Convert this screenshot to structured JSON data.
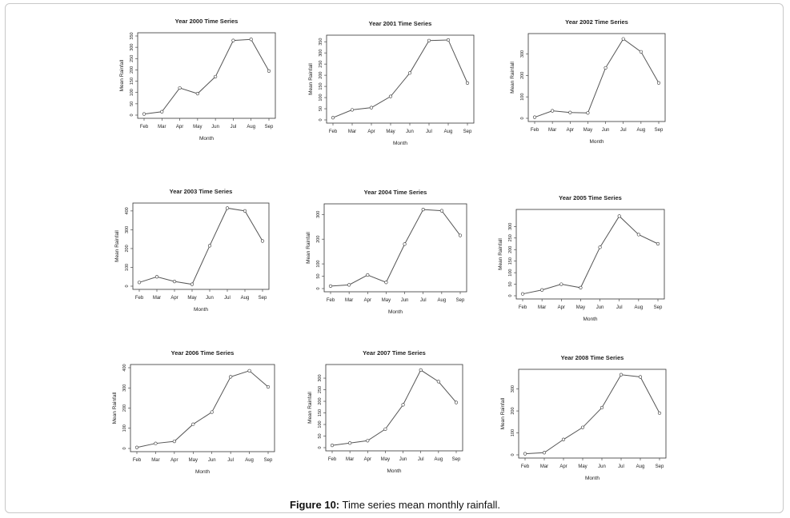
{
  "figure": {
    "label": "Figure 10:",
    "caption": "Time series mean monthly rainfall."
  },
  "chart_data": [
    {
      "type": "line",
      "title": "Year 2000 Time Series",
      "xlabel": "Month",
      "ylabel": "Mean Rainfall",
      "categories": [
        "Feb",
        "Mar",
        "Apr",
        "May",
        "Jun",
        "Jul",
        "Aug",
        "Sep"
      ],
      "values": [
        5,
        15,
        120,
        95,
        170,
        330,
        335,
        195
      ],
      "ylim": [
        0,
        350
      ],
      "yticks": [
        0,
        50,
        100,
        150,
        200,
        250,
        300,
        350
      ]
    },
    {
      "type": "line",
      "title": "Year 2001 Time Series",
      "xlabel": "Month",
      "ylabel": "Mean Rainfall",
      "categories": [
        "Feb",
        "Mar",
        "Apr",
        "May",
        "Jun",
        "Jul",
        "Aug",
        "Sep"
      ],
      "values": [
        10,
        45,
        55,
        105,
        210,
        355,
        358,
        165
      ],
      "ylim": [
        0,
        365
      ],
      "yticks": [
        0,
        50,
        100,
        150,
        200,
        250,
        300,
        350
      ]
    },
    {
      "type": "line",
      "title": "Year 2002 Time Series",
      "xlabel": "Month",
      "ylabel": "Mean Rainfall",
      "categories": [
        "Feb",
        "Mar",
        "Apr",
        "May",
        "Jun",
        "Jul",
        "Aug",
        "Sep"
      ],
      "values": [
        5,
        35,
        27,
        25,
        235,
        370,
        310,
        165
      ],
      "ylim": [
        0,
        380
      ],
      "yticks": [
        0,
        100,
        200,
        300
      ]
    },
    {
      "type": "line",
      "title": "Year 2003 Time Series",
      "xlabel": "Month",
      "ylabel": "Mean Rainfall",
      "categories": [
        "Feb",
        "Mar",
        "Apr",
        "May",
        "Jun",
        "Jul",
        "Aug",
        "Sep"
      ],
      "values": [
        20,
        50,
        25,
        10,
        215,
        415,
        400,
        240
      ],
      "ylim": [
        0,
        425
      ],
      "yticks": [
        0,
        100,
        200,
        300,
        400
      ]
    },
    {
      "type": "line",
      "title": "Year 2004 Time Series",
      "xlabel": "Month",
      "ylabel": "Mean Rainfall",
      "categories": [
        "Feb",
        "Mar",
        "Apr",
        "May",
        "Jun",
        "Jul",
        "Aug",
        "Sep"
      ],
      "values": [
        10,
        15,
        55,
        25,
        180,
        320,
        315,
        215
      ],
      "ylim": [
        0,
        330
      ],
      "yticks": [
        0,
        50,
        100,
        200,
        300
      ]
    },
    {
      "type": "line",
      "title": "Year 2005 Time Series",
      "xlabel": "Month",
      "ylabel": "Mean Rainfall",
      "categories": [
        "Feb",
        "Mar",
        "Apr",
        "May",
        "Jun",
        "Jul",
        "Aug",
        "Sep"
      ],
      "values": [
        8,
        25,
        50,
        35,
        210,
        345,
        265,
        225
      ],
      "ylim": [
        0,
        360
      ],
      "yticks": [
        0,
        50,
        100,
        150,
        200,
        250,
        300
      ]
    },
    {
      "type": "line",
      "title": "Year 2006 Time Series",
      "xlabel": "Month",
      "ylabel": "Mean Rainfall",
      "categories": [
        "Feb",
        "Mar",
        "Apr",
        "May",
        "Jun",
        "Jul",
        "Aug",
        "Sep"
      ],
      "values": [
        5,
        25,
        35,
        120,
        180,
        355,
        385,
        305
      ],
      "ylim": [
        0,
        400
      ],
      "yticks": [
        0,
        100,
        200,
        300,
        400
      ]
    },
    {
      "type": "line",
      "title": "Year 2007 Time Series",
      "xlabel": "Month",
      "ylabel": "Mean Rainfall",
      "categories": [
        "Feb",
        "Mar",
        "Apr",
        "May",
        "Jun",
        "Jul",
        "Aug",
        "Sep"
      ],
      "values": [
        10,
        20,
        30,
        80,
        185,
        335,
        285,
        195
      ],
      "ylim": [
        0,
        345
      ],
      "yticks": [
        0,
        50,
        100,
        150,
        200,
        250,
        300
      ]
    },
    {
      "type": "line",
      "title": "Year 2008 Time Series",
      "xlabel": "Month",
      "ylabel": "Mean Rainfall",
      "categories": [
        "Feb",
        "Mar",
        "Apr",
        "May",
        "Jun",
        "Jul",
        "Aug",
        "Sep"
      ],
      "values": [
        5,
        10,
        70,
        125,
        215,
        365,
        355,
        190
      ],
      "ylim": [
        0,
        375
      ],
      "yticks": [
        0,
        100,
        200,
        300
      ]
    }
  ]
}
